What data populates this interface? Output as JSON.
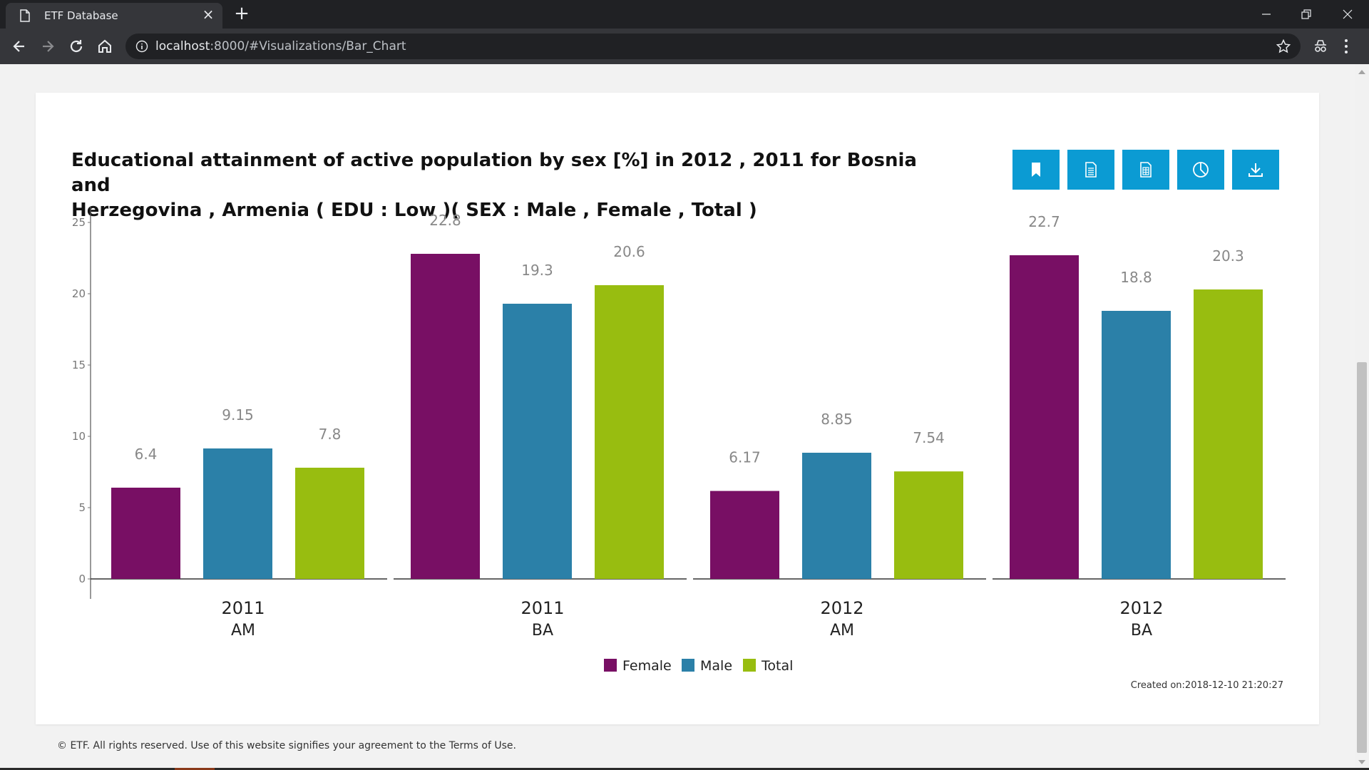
{
  "browser": {
    "tab_title": "ETF Database",
    "url_host": "localhost",
    "url_rest": ":8000/#Visualizations/Bar_Chart"
  },
  "chart_card": {
    "title_line1": "Educational attainment of active population by sex [%] in 2012 , 2011 for Bosnia and",
    "title_line2": "Herzegovina , Armenia ( EDU : Low )( SEX : Male , Female , Total )",
    "action_buttons": [
      "bookmark-icon",
      "document-icon",
      "spreadsheet-icon",
      "pie-chart-icon",
      "download-icon"
    ],
    "created_on": "Created on:2018-12-10 21:20:27"
  },
  "chart_data": {
    "type": "bar",
    "title": "Educational attainment of active population by sex [%] in 2012 , 2011 for Bosnia and Herzegovina , Armenia ( EDU : Low )( SEX : Male , Female , Total )",
    "groups": [
      {
        "year": "2011",
        "country": "AM"
      },
      {
        "year": "2011",
        "country": "BA"
      },
      {
        "year": "2012",
        "country": "AM"
      },
      {
        "year": "2012",
        "country": "BA"
      }
    ],
    "series": [
      {
        "name": "Female",
        "color": "#780f64",
        "values": [
          6.4,
          22.8,
          6.17,
          22.7
        ],
        "labels": [
          "6.4",
          "22.8",
          "6.17",
          "22.7"
        ]
      },
      {
        "name": "Male",
        "color": "#2b80a8",
        "values": [
          9.15,
          19.3,
          8.85,
          18.8
        ],
        "labels": [
          "9.15",
          "19.3",
          "8.85",
          "18.8"
        ]
      },
      {
        "name": "Total",
        "color": "#98bd10",
        "values": [
          7.8,
          20.6,
          7.54,
          20.3
        ],
        "labels": [
          "7.8",
          "20.6",
          "7.54",
          "20.3"
        ]
      }
    ],
    "y_ticks": [
      0,
      5,
      10,
      15,
      20,
      25
    ],
    "ylim": [
      0,
      26
    ],
    "legend": "bottom-center",
    "grid": false
  },
  "footer": {
    "text": "© ETF. All rights reserved. Use of this website signifies your agreement to the Terms of Use."
  },
  "colors": {
    "accent": "#0b9bd3",
    "female": "#780f64",
    "male": "#2b80a8",
    "total": "#98bd10"
  }
}
